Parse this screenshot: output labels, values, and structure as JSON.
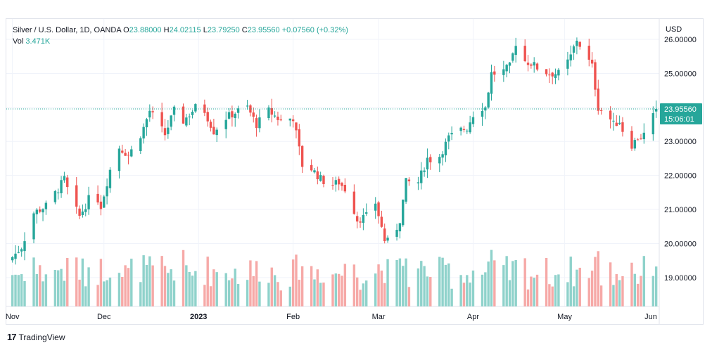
{
  "header": {
    "symbol": "Silver / U.S. Dollar, 1D, OANDA",
    "open_label": "O",
    "open": "23.88000",
    "high_label": "H",
    "high": "24.02115",
    "low_label": "L",
    "low": "23.79250",
    "close_label": "C",
    "close": "23.95560",
    "change": "+0.07560 (+0.32%)",
    "vol_label": "Vol",
    "vol": "3.471K"
  },
  "footer": {
    "logo_glyph": "17",
    "brand": "TradingView"
  },
  "colors": {
    "up": "#26a69a",
    "down": "#ef5350",
    "up_vol": "#8fd2cb",
    "down_vol": "#f6a9a7",
    "grid": "#f0f3fa"
  },
  "chart_data": {
    "type": "candlestick",
    "currency_label": "USD",
    "y_ticks": [
      "26.00000",
      "25.00000",
      "24.00000",
      "23.00000",
      "22.00000",
      "21.00000",
      "20.00000",
      "19.00000"
    ],
    "y_tick_values": [
      26,
      25,
      24,
      23,
      22,
      21,
      20,
      19
    ],
    "ylim": [
      18.15,
      26.6
    ],
    "x_ticks": [
      {
        "label": "Nov",
        "day": 0
      },
      {
        "label": "Dec",
        "day": 30
      },
      {
        "label": "2023",
        "day": 61
      },
      {
        "label": "Feb",
        "day": 92
      },
      {
        "label": "Mar",
        "day": 120
      },
      {
        "label": "Apr",
        "day": 151
      },
      {
        "label": "May",
        "day": 181
      },
      {
        "label": "Jun",
        "day": 212
      }
    ],
    "x_range_days": [
      -2,
      212
    ],
    "last_price": "23.95560",
    "last_price_value": 23.9556,
    "countdown": "15:06:01",
    "candle_keyframes": [
      [
        0,
        19.6
      ],
      [
        3,
        19.9
      ],
      [
        7,
        20.9
      ],
      [
        11,
        21.1
      ],
      [
        15,
        21.6
      ],
      [
        17,
        21.9
      ],
      [
        19,
        21.3
      ],
      [
        22,
        20.8
      ],
      [
        25,
        21.3
      ],
      [
        27,
        21.5
      ],
      [
        29,
        21.1
      ],
      [
        31,
        21.8
      ],
      [
        34,
        22.9
      ],
      [
        38,
        22.6
      ],
      [
        41,
        23.0
      ],
      [
        43,
        23.4
      ],
      [
        45,
        23.9
      ],
      [
        50,
        23.2
      ],
      [
        53,
        23.9
      ],
      [
        56,
        23.6
      ],
      [
        60,
        24.0
      ],
      [
        63,
        23.9
      ],
      [
        66,
        23.3
      ],
      [
        70,
        23.7
      ],
      [
        74,
        23.9
      ],
      [
        77,
        24.0
      ],
      [
        80,
        23.5
      ],
      [
        84,
        23.9
      ],
      [
        88,
        23.6
      ],
      [
        92,
        23.7
      ],
      [
        95,
        22.3
      ],
      [
        98,
        22.2
      ],
      [
        101,
        21.9
      ],
      [
        104,
        21.7
      ],
      [
        107,
        21.8
      ],
      [
        110,
        21.5
      ],
      [
        113,
        20.7
      ],
      [
        116,
        20.8
      ],
      [
        119,
        21.2
      ],
      [
        122,
        20.1
      ],
      [
        124,
        20.0
      ],
      [
        127,
        20.7
      ],
      [
        129,
        21.8
      ],
      [
        133,
        21.8
      ],
      [
        136,
        22.5
      ],
      [
        139,
        22.4
      ],
      [
        143,
        23.1
      ],
      [
        146,
        23.3
      ],
      [
        149,
        23.4
      ],
      [
        152,
        24.0
      ],
      [
        155,
        24.0
      ],
      [
        157,
        25.0
      ],
      [
        160,
        25.0
      ],
      [
        163,
        25.2
      ],
      [
        165,
        25.9
      ],
      [
        167,
        25.4
      ],
      [
        170,
        25.3
      ],
      [
        173,
        25.1
      ],
      [
        176,
        25.0
      ],
      [
        180,
        25.0
      ],
      [
        183,
        25.5
      ],
      [
        185,
        26.0
      ],
      [
        188,
        25.5
      ],
      [
        190,
        25.2
      ],
      [
        192,
        24.0
      ],
      [
        195,
        23.8
      ],
      [
        197,
        23.5
      ],
      [
        199,
        23.6
      ],
      [
        202,
        22.8
      ],
      [
        205,
        23.1
      ],
      [
        207,
        23.2
      ],
      [
        209,
        23.5
      ],
      [
        211,
        23.9556
      ]
    ],
    "volume_scale_note": ""
  }
}
